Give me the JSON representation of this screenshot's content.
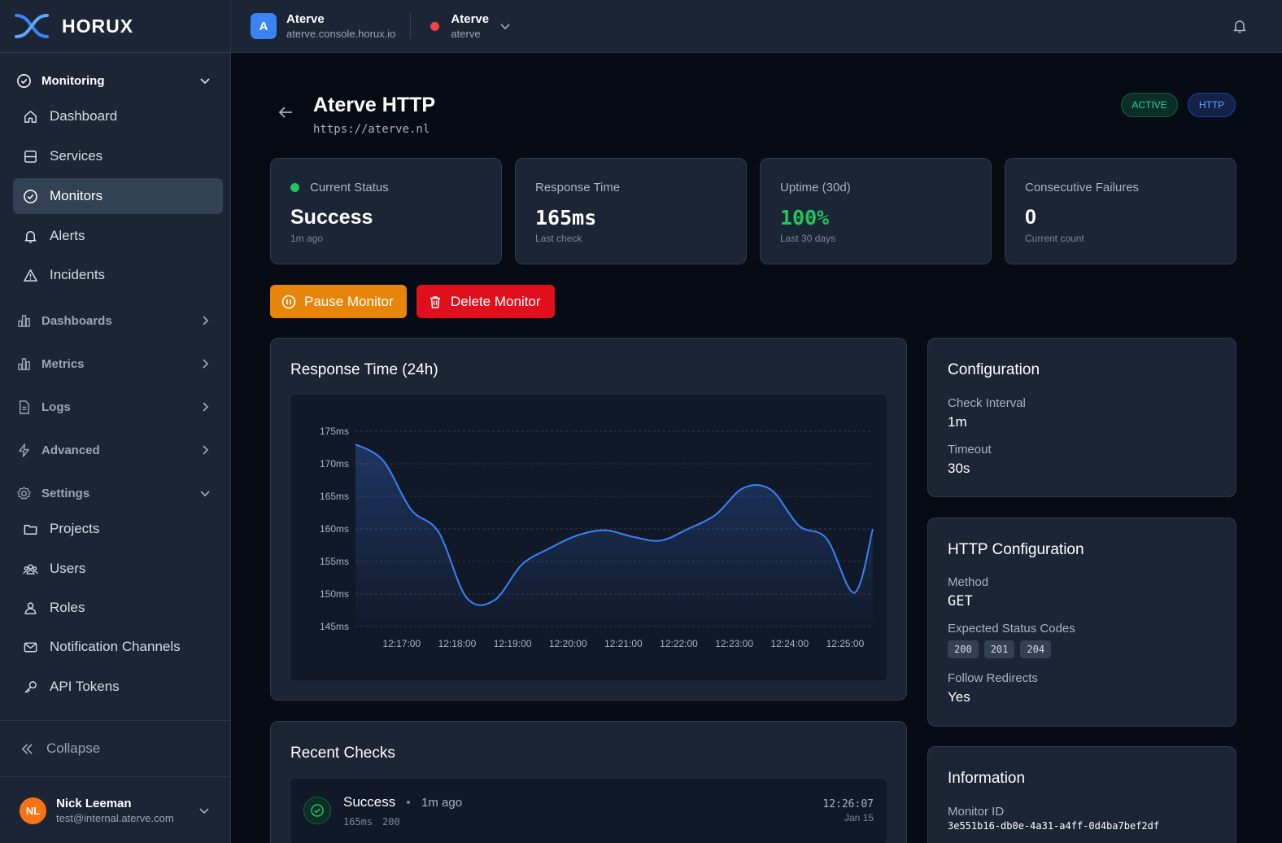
{
  "brand": {
    "name": "HORUX",
    "accent": "#3b82f6"
  },
  "sidebar": {
    "monitoring": {
      "label": "Monitoring"
    },
    "monitoring_items": [
      {
        "label": "Dashboard",
        "icon": "home-icon"
      },
      {
        "label": "Services",
        "icon": "server-icon"
      },
      {
        "label": "Monitors",
        "icon": "check-circle-icon",
        "active": true
      },
      {
        "label": "Alerts",
        "icon": "bell-icon"
      },
      {
        "label": "Incidents",
        "icon": "warning-icon"
      }
    ],
    "sections": [
      {
        "label": "Dashboards",
        "icon": "bar-chart-icon"
      },
      {
        "label": "Metrics",
        "icon": "bar-chart-icon"
      },
      {
        "label": "Logs",
        "icon": "file-icon"
      },
      {
        "label": "Advanced",
        "icon": "bolt-icon"
      }
    ],
    "settings": {
      "label": "Settings"
    },
    "settings_items": [
      {
        "label": "Projects",
        "icon": "folder-icon"
      },
      {
        "label": "Users",
        "icon": "users-icon"
      },
      {
        "label": "Roles",
        "icon": "user-shield-icon"
      },
      {
        "label": "Notification Channels",
        "icon": "mail-icon"
      },
      {
        "label": "API Tokens",
        "icon": "key-icon"
      }
    ],
    "collapse_label": "Collapse",
    "user": {
      "initials": "NL",
      "name": "Nick Leeman",
      "email": "test@internal.aterve.com"
    }
  },
  "topbar": {
    "org": {
      "initial": "A",
      "name": "Aterve",
      "host": "aterve.console.horux.io"
    },
    "env": {
      "name": "Aterve",
      "sub": "aterve",
      "status_color": "#ef4444"
    }
  },
  "page": {
    "title": "Aterve HTTP",
    "url": "https://aterve.nl",
    "badges": {
      "status": "ACTIVE",
      "type": "HTTP"
    }
  },
  "stats": [
    {
      "key": "Current Status",
      "value": "Success",
      "sub": "1m ago"
    },
    {
      "key": "Response Time",
      "value": "165ms",
      "sub": "Last check"
    },
    {
      "key": "Uptime (30d)",
      "value": "100%",
      "sub": "Last 30 days"
    },
    {
      "key": "Consecutive Failures",
      "value": "0",
      "sub": "Current count"
    }
  ],
  "actions": {
    "pause": "Pause Monitor",
    "delete": "Delete Monitor"
  },
  "chart_card_title": "Response Time (24h)",
  "chart_data": {
    "type": "area",
    "x": [
      "12:16:10",
      "12:16:40",
      "12:17:10",
      "12:17:40",
      "12:18:10",
      "12:18:40",
      "12:19:10",
      "12:19:40",
      "12:20:10",
      "12:20:40",
      "12:21:10",
      "12:21:40",
      "12:22:10",
      "12:22:40",
      "12:23:10",
      "12:23:40",
      "12:24:10",
      "12:24:40",
      "12:25:10",
      "12:25:30"
    ],
    "values": [
      173,
      170.5,
      163,
      159.5,
      149.5,
      149,
      154.5,
      157,
      159,
      159.8,
      158.8,
      158.2,
      160,
      162.2,
      166.3,
      166,
      160.5,
      158.5,
      150.2,
      160
    ],
    "xticks": [
      "12:17:00",
      "12:18:00",
      "12:19:00",
      "12:20:00",
      "12:21:00",
      "12:22:00",
      "12:23:00",
      "12:24:00",
      "12:25:00"
    ],
    "yticks": [
      "175ms",
      "170ms",
      "165ms",
      "160ms",
      "155ms",
      "150ms",
      "145ms"
    ],
    "ylim": [
      145,
      175
    ],
    "grid": true,
    "line_color": "#3b82f6"
  },
  "configuration": {
    "title": "Configuration",
    "check_interval_label": "Check Interval",
    "check_interval": "1m",
    "timeout_label": "Timeout",
    "timeout": "30s"
  },
  "http_config": {
    "title": "HTTP Configuration",
    "method_label": "Method",
    "method": "GET",
    "codes_label": "Expected Status Codes",
    "codes": [
      "200",
      "201",
      "204"
    ],
    "redirects_label": "Follow Redirects",
    "redirects": "Yes"
  },
  "information": {
    "title": "Information",
    "id_label": "Monitor ID",
    "id": "3e551b16-db0e-4a31-a4ff-0d4ba7bef2df"
  },
  "recent_checks": {
    "title": "Recent Checks",
    "items": [
      {
        "status": "Success",
        "ago": "1m ago",
        "response": "165ms",
        "code": "200",
        "time": "12:26:07",
        "date": "Jan 15"
      }
    ]
  }
}
